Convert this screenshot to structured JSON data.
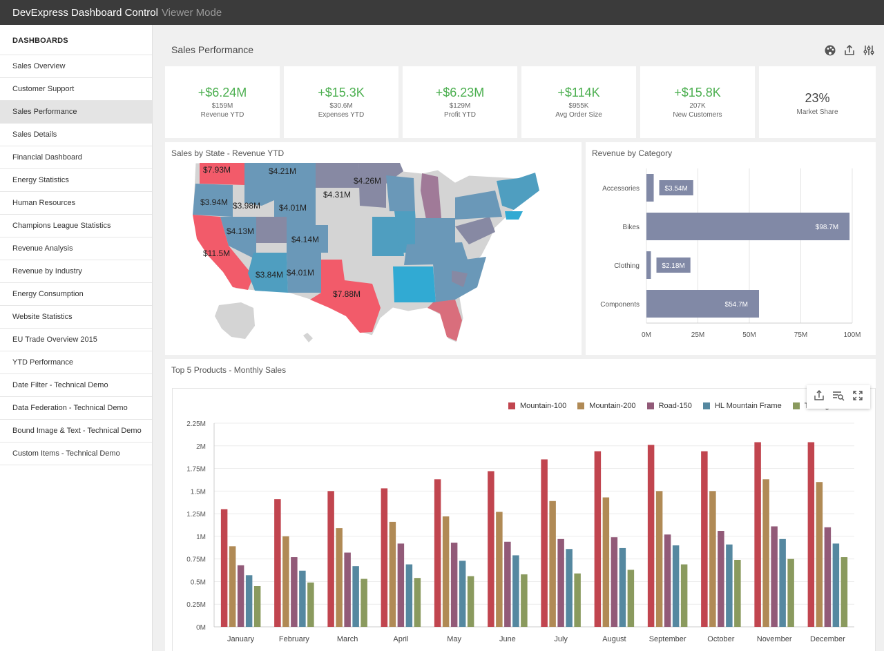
{
  "app": {
    "title": "DevExpress Dashboard Control",
    "mode": "Viewer Mode"
  },
  "sidebar": {
    "heading": "DASHBOARDS",
    "items": [
      {
        "label": "Sales Overview"
      },
      {
        "label": "Customer Support"
      },
      {
        "label": "Sales Performance",
        "active": true
      },
      {
        "label": "Sales Details"
      },
      {
        "label": "Financial Dashboard"
      },
      {
        "label": "Energy Statistics"
      },
      {
        "label": "Human Resources"
      },
      {
        "label": "Champions League Statistics"
      },
      {
        "label": "Revenue Analysis"
      },
      {
        "label": "Revenue by Industry"
      },
      {
        "label": "Energy Consumption"
      },
      {
        "label": "Website Statistics"
      },
      {
        "label": "EU Trade Overview 2015"
      },
      {
        "label": "YTD Performance"
      },
      {
        "label": "Date Filter - Technical Demo"
      },
      {
        "label": "Data Federation - Technical Demo"
      },
      {
        "label": "Bound Image & Text - Technical Demo"
      },
      {
        "label": "Custom Items - Technical Demo"
      }
    ]
  },
  "dashboard": {
    "title": "Sales Performance",
    "toolbar_icons": [
      "palette-icon",
      "export-icon",
      "parameters-icon"
    ]
  },
  "kpis": [
    {
      "delta": "+$6.24M",
      "value": "$159M",
      "label": "Revenue YTD"
    },
    {
      "delta": "+$15.3K",
      "value": "$30.6M",
      "label": "Expenses YTD"
    },
    {
      "delta": "+$6.23M",
      "value": "$129M",
      "label": "Profit YTD"
    },
    {
      "delta": "+$114K",
      "value": "$955K",
      "label": "Avg Order Size"
    },
    {
      "delta": "+$15.8K",
      "value": "207K",
      "label": "New Customers"
    },
    {
      "value": "23%",
      "label": "Market Share"
    }
  ],
  "map": {
    "title": "Sales by State - Revenue YTD",
    "labels": [
      "$7.93M",
      "$4.21M",
      "$4.26M",
      "$4.31M",
      "$3.94M",
      "$3.98M",
      "$4.01M",
      "$4.13M",
      "$4.14M",
      "$11.5M",
      "$3.84M",
      "$4.01M",
      "$7.88M"
    ]
  },
  "category": {
    "title": "Revenue by Category",
    "chart_data": {
      "type": "bar",
      "orientation": "horizontal",
      "categories": [
        "Accessories",
        "Bikes",
        "Clothing",
        "Components"
      ],
      "values": [
        3.54,
        98.7,
        2.18,
        54.7
      ],
      "value_labels": [
        "$3.54M",
        "$98.7M",
        "$2.18M",
        "$54.7M"
      ],
      "xticks": [
        "0M",
        "25M",
        "50M",
        "75M",
        "100M"
      ],
      "xlim": [
        0,
        100
      ],
      "color": "#8189a6"
    }
  },
  "products": {
    "title": "Top 5 Products - Monthly Sales",
    "item_icons": [
      "export-icon",
      "filter-icon",
      "maximize-icon"
    ],
    "chart_data": {
      "type": "bar",
      "categories": [
        "January",
        "February",
        "March",
        "April",
        "May",
        "June",
        "July",
        "August",
        "September",
        "October",
        "November",
        "December"
      ],
      "yticks": [
        "0M",
        "0.25M",
        "0.5M",
        "0.75M",
        "1M",
        "1.25M",
        "1.5M",
        "1.75M",
        "2M",
        "2.25M"
      ],
      "ylim": [
        0,
        2.25
      ],
      "legend_position": "top-right",
      "series": [
        {
          "name": "Mountain-100",
          "color": "#c1454f",
          "values": [
            1.3,
            1.41,
            1.5,
            1.53,
            1.63,
            1.72,
            1.85,
            1.94,
            2.01,
            1.94,
            2.04,
            2.04
          ]
        },
        {
          "name": "Mountain-200",
          "color": "#b08a55",
          "values": [
            0.89,
            1.0,
            1.09,
            1.16,
            1.22,
            1.27,
            1.39,
            1.43,
            1.5,
            1.5,
            1.63,
            1.6
          ]
        },
        {
          "name": "Road-150",
          "color": "#925a78",
          "values": [
            0.68,
            0.77,
            0.82,
            0.92,
            0.93,
            0.94,
            0.97,
            0.99,
            1.02,
            1.06,
            1.11,
            1.1
          ]
        },
        {
          "name": "HL Mountain Frame",
          "color": "#5588a0",
          "values": [
            0.57,
            0.62,
            0.67,
            0.69,
            0.73,
            0.79,
            0.86,
            0.87,
            0.9,
            0.91,
            0.97,
            0.92
          ]
        },
        {
          "name": "Touring-1000",
          "color": "#8a9a5e",
          "values": [
            0.45,
            0.49,
            0.53,
            0.54,
            0.56,
            0.58,
            0.59,
            0.63,
            0.69,
            0.74,
            0.75,
            0.77
          ]
        }
      ]
    }
  }
}
